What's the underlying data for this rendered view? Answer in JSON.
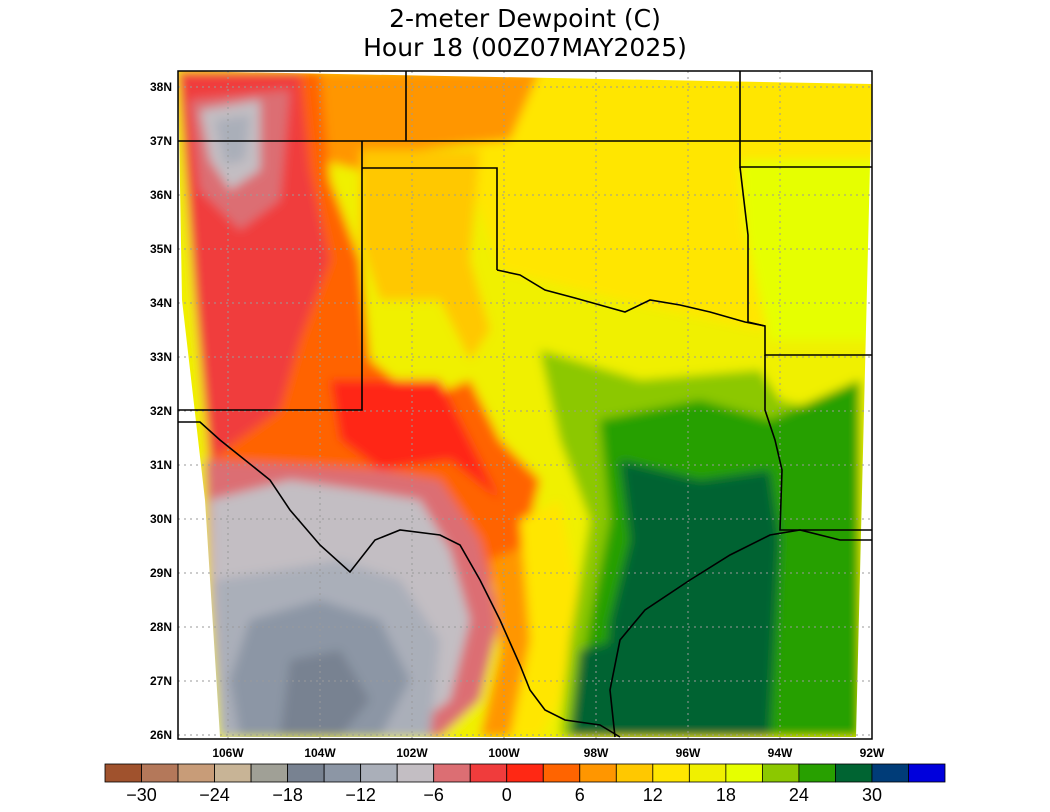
{
  "title": {
    "line1": "2-meter Dewpoint (C)",
    "line2": "Hour 18 (00Z07MAY2025)"
  },
  "map": {
    "type": "filled-contour map",
    "variable": "2-meter dewpoint",
    "units": "C",
    "region": "Texas, Oklahoma, New Mexico and surrounding",
    "lat_labels": [
      "38N",
      "37N",
      "36N",
      "35N",
      "34N",
      "33N",
      "32N",
      "31N",
      "30N",
      "29N",
      "28N",
      "27N",
      "26N"
    ],
    "lon_labels": [
      "106W",
      "104W",
      "102W",
      "100W",
      "98W",
      "96W",
      "94W",
      "92W"
    ],
    "grid_lines": "dotted"
  },
  "colorbar": {
    "tick_labels": [
      "−30",
      "−24",
      "−18",
      "−12",
      "−6",
      "0",
      "6",
      "12",
      "18",
      "24",
      "30"
    ],
    "colors": [
      "#a0522d",
      "#b4785a",
      "#c89c78",
      "#c8b496",
      "#a0a096",
      "#788291",
      "#8c96a5",
      "#aaafb9",
      "#c3bec3",
      "#dc6e73",
      "#f03c3c",
      "#ff2814",
      "#ff6400",
      "#ff9600",
      "#ffc800",
      "#ffe600",
      "#f0f000",
      "#e6ff00",
      "#8cc800",
      "#28a000",
      "#006432",
      "#003c78",
      "#0000dc"
    ]
  },
  "chart_data": {
    "type": "heatmap",
    "title": "2-meter Dewpoint (C)",
    "subtitle": "Hour 18 (00Z07MAY2025)",
    "xlabel": "",
    "ylabel": "",
    "xlim": [
      -107,
      -92
    ],
    "ylim": [
      26,
      38.3
    ],
    "x_ticks": [
      "106W",
      "104W",
      "102W",
      "100W",
      "98W",
      "96W",
      "94W",
      "92W"
    ],
    "y_ticks": [
      "26N",
      "27N",
      "28N",
      "29N",
      "30N",
      "31N",
      "32N",
      "33N",
      "34N",
      "35N",
      "36N",
      "37N",
      "38N"
    ],
    "colorbar_range": [
      -30,
      30
    ],
    "regional_values": [
      {
        "region": "northwest New Mexico",
        "dewpoint_c": -6
      },
      {
        "region": "Oklahoma / Kansas",
        "dewpoint_c": 14
      },
      {
        "region": "north central Texas",
        "dewpoint_c": 18
      },
      {
        "region": "east / southeast Texas coast",
        "dewpoint_c": 26
      },
      {
        "region": "Louisiana",
        "dewpoint_c": 24
      },
      {
        "region": "northern Mexico (Chihuahua/Coahuila)",
        "dewpoint_c": -15
      },
      {
        "region": "west Texas",
        "dewpoint_c": 3
      }
    ]
  }
}
